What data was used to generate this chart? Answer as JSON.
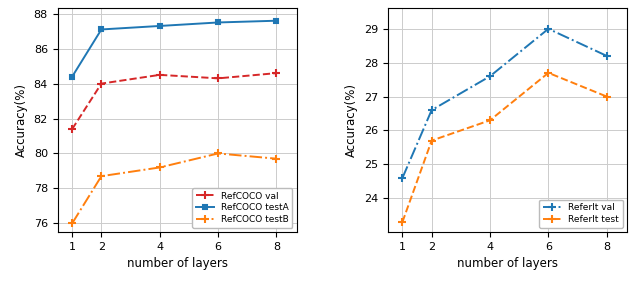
{
  "x": [
    1,
    2,
    4,
    6,
    8
  ],
  "left": {
    "refcoco_val": [
      81.4,
      84.0,
      84.5,
      84.3,
      84.6
    ],
    "refcoco_testA": [
      84.4,
      87.1,
      87.3,
      87.5,
      87.6
    ],
    "refcoco_testB": [
      76.0,
      78.7,
      79.2,
      80.0,
      79.7
    ],
    "ylabel": "Accuracy(%)",
    "xlabel": "number of layers",
    "ylim": [
      75.5,
      88.3
    ],
    "yticks": [
      76,
      78,
      80,
      82,
      84,
      86,
      88
    ],
    "legend_labels": [
      "RefCOCO val",
      "RefCOCO testA",
      "RefCOCO testB"
    ],
    "colors": [
      "#d62728",
      "#1f77b4",
      "#ff7f0e"
    ],
    "styles": [
      "--",
      "-",
      "-."
    ],
    "markers": [
      "+",
      "s",
      "+"
    ]
  },
  "right": {
    "referit_val": [
      24.6,
      26.6,
      27.6,
      29.0,
      28.2
    ],
    "referit_test": [
      23.3,
      25.7,
      26.3,
      27.7,
      27.0
    ],
    "ylabel": "Accuracy(%)",
    "xlabel": "number of layers",
    "ylim": [
      23.0,
      29.6
    ],
    "yticks": [
      24,
      25,
      26,
      27,
      28,
      29
    ],
    "legend_labels": [
      "ReferIt val",
      "ReferIt test"
    ],
    "colors": [
      "#1f77b4",
      "#ff7f0e"
    ],
    "styles": [
      "-.",
      "--"
    ],
    "markers": [
      "+",
      "+"
    ]
  },
  "bg_color": "#ffffff",
  "grid_color": "#cccccc",
  "figsize": [
    6.4,
    2.83
  ],
  "dpi": 100
}
